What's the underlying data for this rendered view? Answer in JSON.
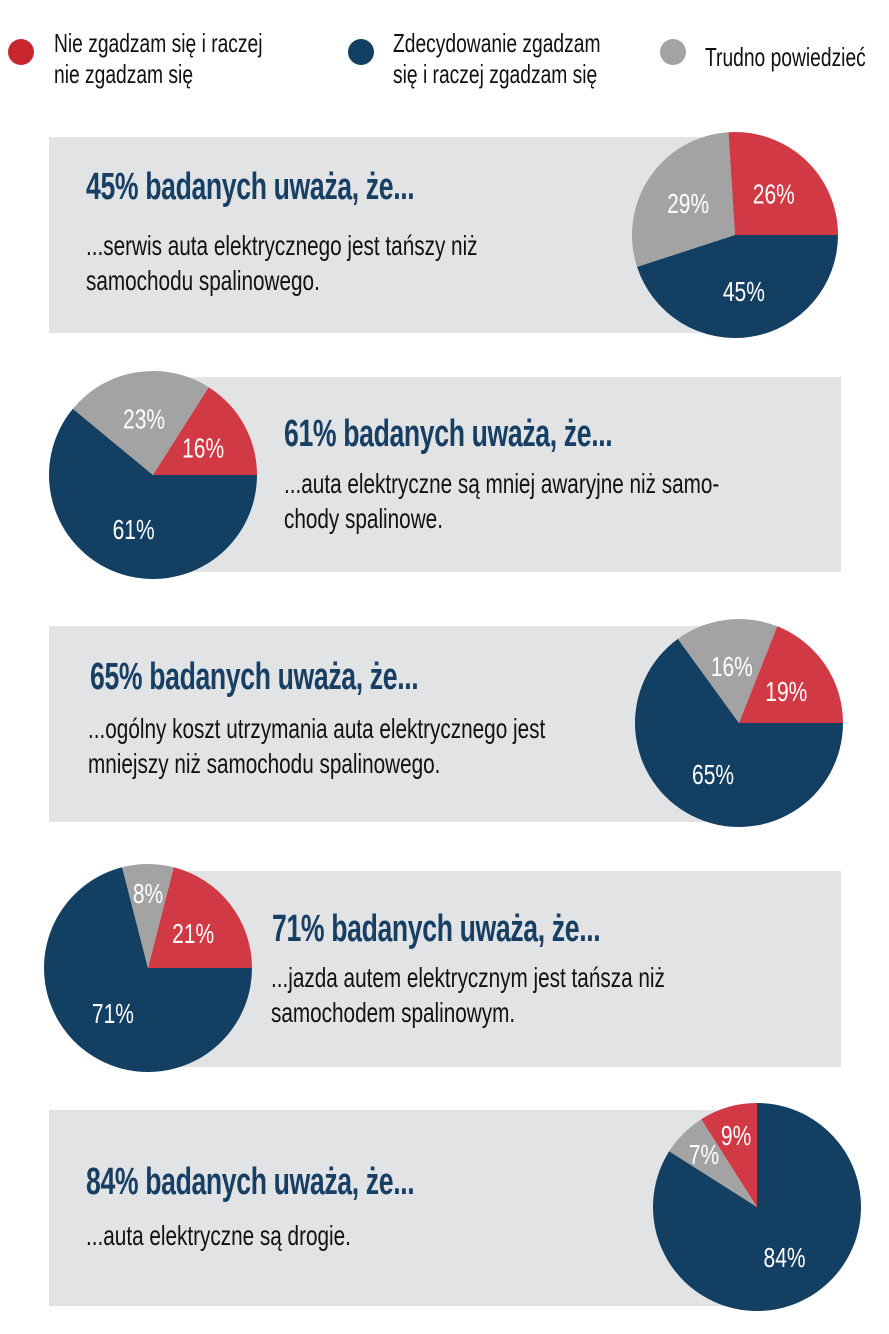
{
  "legend": [
    {
      "label_line1": "Nie zgadzam się i raczej",
      "label_line2": "nie zgadzam się",
      "color": "#c8262f"
    },
    {
      "label_line1": "Zdecydowanie zgadzam",
      "label_line2": "się i raczej zgadzam się",
      "color": "#133f63"
    },
    {
      "label_line1": "Trudno powiedzieć",
      "label_line2": "",
      "color": "#a3a3a3"
    }
  ],
  "colors": {
    "disagree": "#d13a44",
    "agree": "#133f63",
    "unsure": "#a3a3a3",
    "box": "#e2e3e5",
    "heading": "#173f63"
  },
  "panels": [
    {
      "heading": "45% badanych uważa, że...",
      "lines": [
        "...serwis auta elektrycznego jest tańszy niż",
        "samochodu spalinowego."
      ]
    },
    {
      "heading": "61% badanych uważa, że...",
      "lines": [
        "...auta elektryczne są mniej awaryjne niż samo-",
        "chody spalinowe."
      ]
    },
    {
      "heading": "65% badanych uważa, że...",
      "lines": [
        "...ogólny koszt utrzymania auta elektrycznego jest",
        "mniejszy niż samochodu spalinowego."
      ]
    },
    {
      "heading": "71% badanych uważa, że...",
      "lines": [
        "...jazda autem elektrycznym jest tańsza niż",
        "samochodem spalinowym."
      ]
    },
    {
      "heading": "84% badanych uważa, że...",
      "lines": [
        "...auta elektryczne są drogie."
      ]
    }
  ],
  "chart_data": [
    {
      "type": "pie",
      "categories": [
        "Nie zgadzam się i raczej nie zgadzam się",
        "Zdecydowanie zgadzam się i raczej zgadzam się",
        "Trudno powiedzieć"
      ],
      "values": [
        26,
        45,
        29
      ],
      "labels": [
        "26%",
        "45%",
        "29%"
      ]
    },
    {
      "type": "pie",
      "categories": [
        "Nie zgadzam się i raczej nie zgadzam się",
        "Zdecydowanie zgadzam się i raczej zgadzam się",
        "Trudno powiedzieć"
      ],
      "values": [
        16,
        61,
        23
      ],
      "labels": [
        "16%",
        "61%",
        "23%"
      ]
    },
    {
      "type": "pie",
      "categories": [
        "Nie zgadzam się i raczej nie zgadzam się",
        "Zdecydowanie zgadzam się i raczej zgadzam się",
        "Trudno powiedzieć"
      ],
      "values": [
        19,
        65,
        16
      ],
      "labels": [
        "19%",
        "65%",
        "16%"
      ]
    },
    {
      "type": "pie",
      "categories": [
        "Nie zgadzam się i raczej nie zgadzam się",
        "Zdecydowanie zgadzam się i raczej zgadzam się",
        "Trudno powiedzieć"
      ],
      "values": [
        21,
        71,
        8
      ],
      "labels": [
        "21%",
        "71%",
        "8%"
      ]
    },
    {
      "type": "pie",
      "categories": [
        "Nie zgadzam się i raczej nie zgadzam się",
        "Zdecydowanie zgadzam się i raczej zgadzam się",
        "Trudno powiedzieć"
      ],
      "values": [
        9,
        84,
        7
      ],
      "labels": [
        "9%",
        "84%",
        "7%"
      ]
    }
  ]
}
